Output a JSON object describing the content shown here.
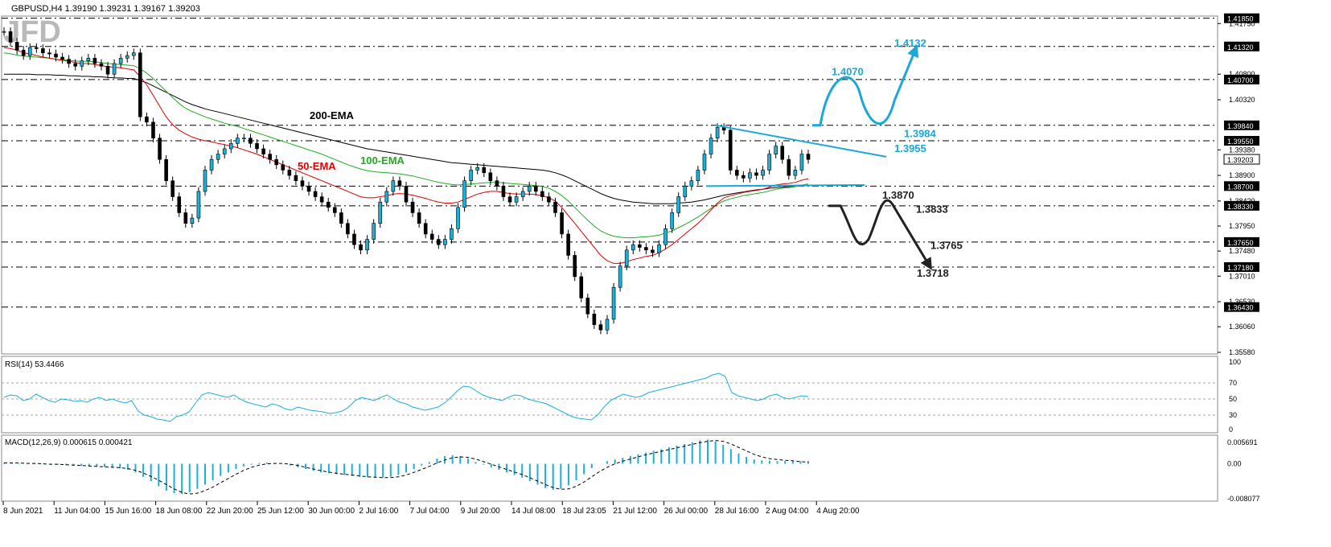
{
  "header": {
    "symbol_info": "GBPUSD,H4  1.39190 1.39231 1.39167 1.39203",
    "logo": "JFD"
  },
  "chart_data": [
    {
      "type": "candlestick",
      "panel": "price",
      "symbol": "GBPUSD",
      "timeframe": "H4",
      "ylim": [
        1.3558,
        1.4186
      ],
      "y_ticks": [
        "1.41750",
        "1.40800",
        "1.40320",
        "1.39380",
        "1.38900",
        "1.38420",
        "1.37950",
        "1.37480",
        "1.37010",
        "1.36530",
        "1.36060",
        "1.35580"
      ],
      "level_lines": [
        {
          "value": 1.4185,
          "label": "1.41850"
        },
        {
          "value": 1.4132,
          "label": "1.41320"
        },
        {
          "value": 1.407,
          "label": "1.40700"
        },
        {
          "value": 1.3984,
          "label": "1.39840"
        },
        {
          "value": 1.3955,
          "label": "1.39550"
        },
        {
          "value": 1.387,
          "label": "1.38700"
        },
        {
          "value": 1.3833,
          "label": "1.38330"
        },
        {
          "value": 1.3765,
          "label": "1.37650"
        },
        {
          "value": 1.3718,
          "label": "1.37180"
        },
        {
          "value": 1.3643,
          "label": "1.36430"
        }
      ],
      "current_price": {
        "value": 1.39203,
        "label": "1.39203"
      },
      "ema_labels": [
        {
          "text": "200-EMA",
          "color": "#000000"
        },
        {
          "text": "100-EMA",
          "color": "#22aa22"
        },
        {
          "text": "50-EMA",
          "color": "#e00000"
        }
      ],
      "scenario_labels": {
        "bullish": [
          "1.4132",
          "1.4070",
          "1.3984",
          "1.3955"
        ],
        "bearish": [
          "1.3870",
          "1.3833",
          "1.3765",
          "1.3718"
        ]
      },
      "colors": {
        "bull_scenario": "#1ba8d8",
        "bear_scenario": "#222222",
        "candle": "#1ab0d8",
        "ema50": "#e00000",
        "ema100": "#22aa22",
        "ema200": "#000000"
      },
      "x_ticks": [
        "8 Jun 2021",
        "11 Jun 04:00",
        "15 Jun 16:00",
        "18 Jun 08:00",
        "22 Jun 20:00",
        "25 Jun 12:00",
        "30 Jun 00:00",
        "2 Jul 16:00",
        "7 Jul 04:00",
        "9 Jul 20:00",
        "14 Jul 08:00",
        "18 Jul 23:05",
        "21 Jul 12:00",
        "26 Jul 00:00",
        "28 Jul 16:00",
        "2 Aug 04:00",
        "4 Aug 20:00"
      ],
      "close": [
        1.416,
        1.414,
        1.4125,
        1.4115,
        1.413,
        1.4128,
        1.412,
        1.4118,
        1.4112,
        1.4108,
        1.41,
        1.4095,
        1.4105,
        1.411,
        1.41,
        1.4095,
        1.408,
        1.41,
        1.411,
        1.4115,
        1.412,
        1.4,
        1.399,
        1.396,
        1.392,
        1.388,
        1.385,
        1.382,
        1.38,
        1.381,
        1.386,
        1.39,
        1.392,
        1.393,
        1.394,
        1.395,
        1.396,
        1.396,
        1.395,
        1.394,
        1.393,
        1.392,
        1.391,
        1.39,
        1.389,
        1.388,
        1.387,
        1.386,
        1.385,
        1.384,
        1.383,
        1.382,
        1.38,
        1.378,
        1.376,
        1.375,
        1.377,
        1.38,
        1.384,
        1.386,
        1.388,
        1.387,
        1.384,
        1.382,
        1.38,
        1.378,
        1.377,
        1.376,
        1.377,
        1.379,
        1.383,
        1.388,
        1.39,
        1.3905,
        1.3895,
        1.388,
        1.387,
        1.385,
        1.384,
        1.385,
        1.386,
        1.387,
        1.386,
        1.385,
        1.384,
        1.382,
        1.378,
        1.374,
        1.37,
        1.366,
        1.363,
        1.361,
        1.36,
        1.362,
        1.368,
        1.372,
        1.375,
        1.376,
        1.3755,
        1.375,
        1.3745,
        1.376,
        1.379,
        1.382,
        1.385,
        1.387,
        1.388,
        1.39,
        1.393,
        1.396,
        1.398,
        1.3975,
        1.39,
        1.389,
        1.3885,
        1.3895,
        1.389,
        1.39,
        1.393,
        1.3945,
        1.392,
        1.389,
        1.39,
        1.393,
        1.392
      ],
      "ema50": [
        1.413,
        1.4128,
        1.4125,
        1.412,
        1.4118,
        1.4115,
        1.4112,
        1.411,
        1.4108,
        1.4106,
        1.4104,
        1.4102,
        1.41,
        1.41,
        1.4098,
        1.4096,
        1.4094,
        1.4093,
        1.4092,
        1.409,
        1.4088,
        1.4075,
        1.406,
        1.404,
        1.402,
        1.4,
        1.3985,
        1.3975,
        1.3968,
        1.3962,
        1.3958,
        1.3955,
        1.3953,
        1.395,
        1.3948,
        1.3945,
        1.3942,
        1.3938,
        1.3934,
        1.393,
        1.3925,
        1.392,
        1.3915,
        1.391,
        1.3905,
        1.39,
        1.3895,
        1.389,
        1.3885,
        1.388,
        1.3875,
        1.387,
        1.3865,
        1.386,
        1.3855,
        1.385,
        1.3848,
        1.3848,
        1.385,
        1.3852,
        1.3855,
        1.3856,
        1.3855,
        1.3853,
        1.385,
        1.3847,
        1.3843,
        1.384,
        1.3838,
        1.3838,
        1.384,
        1.3845,
        1.385,
        1.3855,
        1.3858,
        1.386,
        1.386,
        1.3858,
        1.3856,
        1.3855,
        1.3855,
        1.3855,
        1.3854,
        1.3852,
        1.3848,
        1.3842,
        1.383,
        1.3815,
        1.38,
        1.3785,
        1.377,
        1.3755,
        1.374,
        1.373,
        1.3725,
        1.3725,
        1.3728,
        1.3732,
        1.3735,
        1.3738,
        1.374,
        1.3745,
        1.3752,
        1.376,
        1.377,
        1.378,
        1.379,
        1.38,
        1.3812,
        1.3825,
        1.3838,
        1.3848,
        1.3852,
        1.3855,
        1.3858,
        1.386,
        1.3862,
        1.3864,
        1.3868,
        1.3872,
        1.3874,
        1.3875,
        1.3877,
        1.3881,
        1.3884
      ],
      "ema100": [
        1.412,
        1.4118,
        1.4116,
        1.4114,
        1.4113,
        1.4112,
        1.4111,
        1.411,
        1.4108,
        1.4107,
        1.4106,
        1.4105,
        1.4104,
        1.4104,
        1.4103,
        1.4102,
        1.41,
        1.4099,
        1.4098,
        1.4097,
        1.4096,
        1.409,
        1.4082,
        1.4072,
        1.406,
        1.4048,
        1.4036,
        1.4025,
        1.4016,
        1.401,
        1.4005,
        1.4,
        1.3996,
        1.3992,
        1.3988,
        1.3985,
        1.3982,
        1.3978,
        1.3974,
        1.397,
        1.3966,
        1.3962,
        1.3958,
        1.3954,
        1.395,
        1.3946,
        1.3942,
        1.3938,
        1.3934,
        1.393,
        1.3925,
        1.392,
        1.3915,
        1.391,
        1.3906,
        1.3902,
        1.3899,
        1.3897,
        1.3896,
        1.3895,
        1.3894,
        1.3893,
        1.3891,
        1.3889,
        1.3886,
        1.3883,
        1.388,
        1.3877,
        1.3875,
        1.3873,
        1.3872,
        1.3873,
        1.3874,
        1.3875,
        1.3876,
        1.3877,
        1.3877,
        1.3876,
        1.3875,
        1.3874,
        1.3873,
        1.3872,
        1.3871,
        1.3869,
        1.3866,
        1.386,
        1.3852,
        1.3842,
        1.383,
        1.3818,
        1.3806,
        1.3795,
        1.3786,
        1.378,
        1.3776,
        1.3774,
        1.3773,
        1.3773,
        1.3774,
        1.3775,
        1.3776,
        1.3778,
        1.3782,
        1.3786,
        1.3792,
        1.3798,
        1.3805,
        1.3812,
        1.382,
        1.3828,
        1.3836,
        1.3842,
        1.3846,
        1.3849,
        1.3852,
        1.3854,
        1.3856,
        1.3858,
        1.3861,
        1.3864,
        1.3866,
        1.3867,
        1.3869,
        1.3872,
        1.3874
      ],
      "ema200": [
        1.408,
        1.408,
        1.408,
        1.408,
        1.408,
        1.4079,
        1.4079,
        1.4079,
        1.4078,
        1.4078,
        1.4077,
        1.4077,
        1.4076,
        1.4076,
        1.4075,
        1.4075,
        1.4074,
        1.4073,
        1.4073,
        1.4072,
        1.4072,
        1.4068,
        1.4064,
        1.4058,
        1.4052,
        1.4046,
        1.404,
        1.4034,
        1.4028,
        1.4023,
        1.4019,
        1.4015,
        1.4012,
        1.4009,
        1.4006,
        1.4003,
        1.4,
        1.3997,
        1.3994,
        1.3991,
        1.3988,
        1.3985,
        1.3982,
        1.3979,
        1.3976,
        1.3973,
        1.397,
        1.3967,
        1.3964,
        1.3961,
        1.3958,
        1.3955,
        1.3952,
        1.3949,
        1.3946,
        1.3943,
        1.394,
        1.3938,
        1.3936,
        1.3934,
        1.3932,
        1.393,
        1.3928,
        1.3926,
        1.3924,
        1.3922,
        1.392,
        1.3918,
        1.3916,
        1.3914,
        1.3913,
        1.3912,
        1.3911,
        1.391,
        1.3909,
        1.3908,
        1.3907,
        1.3906,
        1.3905,
        1.3904,
        1.3903,
        1.3902,
        1.3901,
        1.39,
        1.3898,
        1.3895,
        1.3891,
        1.3886,
        1.388,
        1.3874,
        1.3868,
        1.3862,
        1.3856,
        1.3851,
        1.3847,
        1.3844,
        1.3842,
        1.384,
        1.3839,
        1.3838,
        1.3837,
        1.3837,
        1.3837,
        1.3837,
        1.3838,
        1.3839,
        1.384,
        1.3842,
        1.3844,
        1.3847,
        1.385,
        1.3853,
        1.3855,
        1.3857,
        1.3859,
        1.3861,
        1.3863,
        1.3864,
        1.3866,
        1.3867,
        1.3868,
        1.3869,
        1.387,
        1.3871,
        1.3872
      ]
    },
    {
      "type": "line",
      "panel": "rsi",
      "title": "RSI(14) 53.4466",
      "ylim": [
        10,
        100
      ],
      "y_ticks": [
        "100",
        "70",
        "50",
        "30",
        "0"
      ],
      "levels": [
        70,
        50,
        30
      ],
      "values": [
        52,
        55,
        54,
        48,
        50,
        56,
        52,
        48,
        46,
        50,
        49,
        47,
        48,
        46,
        50,
        52,
        48,
        50,
        47,
        45,
        48,
        35,
        30,
        28,
        25,
        24,
        22,
        28,
        30,
        34,
        45,
        55,
        58,
        56,
        54,
        52,
        55,
        50,
        46,
        44,
        42,
        40,
        44,
        42,
        38,
        36,
        40,
        38,
        36,
        35,
        34,
        32,
        33,
        35,
        40,
        48,
        52,
        50,
        48,
        52,
        55,
        50,
        46,
        44,
        40,
        38,
        36,
        38,
        40,
        45,
        52,
        60,
        66,
        65,
        60,
        55,
        52,
        50,
        48,
        52,
        55,
        54,
        50,
        48,
        46,
        44,
        40,
        36,
        32,
        28,
        26,
        25,
        24,
        30,
        40,
        48,
        52,
        56,
        54,
        52,
        54,
        58,
        60,
        62,
        64,
        66,
        68,
        70,
        72,
        74,
        76,
        80,
        82,
        78,
        58,
        54,
        52,
        50,
        48,
        50,
        54,
        56,
        52,
        50,
        52,
        54,
        53
      ]
    },
    {
      "type": "bar",
      "panel": "macd",
      "title": "MACD(12,26,9) 0.000615 0.000421",
      "ylim": [
        -0.008077,
        0.005691
      ],
      "y_ticks": [
        "0.005691",
        "0.00",
        "-0.008077"
      ],
      "histogram": [
        0.0002,
        0.0002,
        0.0001,
        0.0,
        -0.0001,
        -0.0001,
        -0.0002,
        -0.0002,
        -0.0003,
        -0.0004,
        -0.0005,
        -0.0006,
        -0.0006,
        -0.0007,
        -0.0008,
        -0.001,
        -0.0014,
        -0.002,
        -0.003,
        -0.004,
        -0.0052,
        -0.0062,
        -0.0068,
        -0.007,
        -0.0066,
        -0.0058,
        -0.0048,
        -0.0038,
        -0.0028,
        -0.002,
        -0.0012,
        -0.0006,
        -0.0002,
        0.0002,
        0.0003,
        0.0002,
        0.0,
        -0.0004,
        -0.0008,
        -0.0012,
        -0.0016,
        -0.002,
        -0.0022,
        -0.0024,
        -0.0026,
        -0.0028,
        -0.003,
        -0.0031,
        -0.0032,
        -0.0032,
        -0.003,
        -0.0026,
        -0.002,
        -0.0012,
        -0.0004,
        0.0004,
        0.0012,
        0.0018,
        0.002,
        0.0018,
        0.0012,
        0.0004,
        -0.0002,
        -0.0008,
        -0.0014,
        -0.002,
        -0.0026,
        -0.0032,
        -0.004,
        -0.0048,
        -0.0056,
        -0.006,
        -0.0058,
        -0.005,
        -0.0038,
        -0.0024,
        -0.001,
        0.0,
        0.0006,
        0.001,
        0.0014,
        0.0018,
        0.0022,
        0.0026,
        0.003,
        0.0034,
        0.0038,
        0.0042,
        0.0046,
        0.005,
        0.0054,
        0.0056,
        0.0052,
        0.0044,
        0.0034,
        0.0024,
        0.0016,
        0.001,
        0.0008,
        0.0007,
        0.0006,
        0.0006,
        0.0006,
        0.0006,
        0.0006
      ],
      "signal": [
        0.0002,
        0.0002,
        0.0002,
        0.0001,
        0.0001,
        0.0,
        -0.0001,
        -0.0001,
        -0.0002,
        -0.0003,
        -0.0004,
        -0.0005,
        -0.0006,
        -0.0007,
        -0.0008,
        -0.0009,
        -0.0011,
        -0.0015,
        -0.0021,
        -0.0029,
        -0.0038,
        -0.0048,
        -0.0058,
        -0.0066,
        -0.007,
        -0.0068,
        -0.0062,
        -0.0054,
        -0.0044,
        -0.0034,
        -0.0024,
        -0.0015,
        -0.0008,
        -0.0003,
        0.0,
        0.0001,
        0.0001,
        -0.0001,
        -0.0004,
        -0.0008,
        -0.0012,
        -0.0016,
        -0.0019,
        -0.0022,
        -0.0024,
        -0.0026,
        -0.0028,
        -0.003,
        -0.0031,
        -0.0032,
        -0.0032,
        -0.003,
        -0.0026,
        -0.002,
        -0.0013,
        -0.0006,
        0.0002,
        0.0009,
        0.0014,
        0.0016,
        0.0015,
        0.0011,
        0.0005,
        -0.0001,
        -0.0007,
        -0.0013,
        -0.0019,
        -0.0025,
        -0.0032,
        -0.004,
        -0.0048,
        -0.0055,
        -0.0059,
        -0.0058,
        -0.0052,
        -0.0042,
        -0.003,
        -0.0018,
        -0.0008,
        0.0,
        0.0006,
        0.0011,
        0.0016,
        0.0021,
        0.0025,
        0.0029,
        0.0033,
        0.0037,
        0.0041,
        0.0045,
        0.0049,
        0.0052,
        0.0054,
        0.0052,
        0.0046,
        0.0038,
        0.003,
        0.0022,
        0.0016,
        0.0012,
        0.001,
        0.0008,
        0.0007,
        0.0005,
        0.0004
      ]
    }
  ]
}
